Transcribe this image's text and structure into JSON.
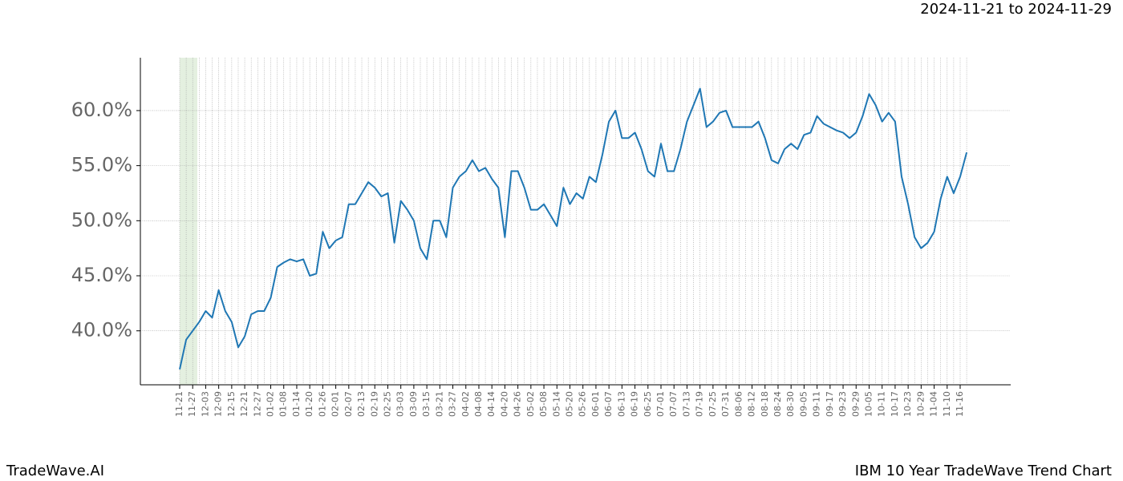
{
  "header": {
    "range": "2024-11-21 to 2024-11-29"
  },
  "footer": {
    "brand": "TradeWave.AI",
    "title": "IBM 10 Year TradeWave Trend Chart"
  },
  "chart_data": {
    "type": "line",
    "categories": [
      "11-21",
      null,
      "11-27",
      null,
      "12-03",
      null,
      "12-09",
      null,
      "12-15",
      null,
      "12-21",
      null,
      "12-27",
      null,
      "01-02",
      null,
      "01-08",
      null,
      "01-14",
      null,
      "01-20",
      null,
      "01-26",
      null,
      "02-01",
      null,
      "02-07",
      null,
      "02-13",
      null,
      "02-19",
      null,
      "02-25",
      null,
      "03-03",
      null,
      "03-09",
      null,
      "03-15",
      null,
      "03-21",
      null,
      "03-27",
      null,
      "04-02",
      null,
      "04-08",
      null,
      "04-14",
      null,
      "04-20",
      null,
      "04-26",
      null,
      "05-02",
      null,
      "05-08",
      null,
      "05-14",
      null,
      "05-20",
      null,
      "05-26",
      null,
      "06-01",
      null,
      "06-07",
      null,
      "06-13",
      null,
      "06-19",
      null,
      "06-25",
      null,
      "07-01",
      null,
      "07-07",
      null,
      "07-13",
      null,
      "07-19",
      null,
      "07-25",
      null,
      "07-31",
      null,
      "08-06",
      null,
      "08-12",
      null,
      "08-18",
      null,
      "08-24",
      null,
      "08-30",
      null,
      "09-05",
      null,
      "09-11",
      null,
      "09-17",
      null,
      "09-23",
      null,
      "09-29",
      null,
      "10-05",
      null,
      "10-11",
      null,
      "10-17",
      null,
      "10-23",
      null,
      "10-29",
      null,
      "11-04",
      null,
      "11-10",
      null,
      "11-16",
      null
    ],
    "series": [
      {
        "color": "#1f77b4",
        "values": [
          36.5,
          39.2,
          40.0,
          40.8,
          41.8,
          41.2,
          43.7,
          41.8,
          40.8,
          38.5,
          39.5,
          41.5,
          41.8,
          41.8,
          43.0,
          45.8,
          46.2,
          46.5,
          46.3,
          46.5,
          45.0,
          45.2,
          49.0,
          47.5,
          48.2,
          48.5,
          51.5,
          51.5,
          52.5,
          53.5,
          53.0,
          52.2,
          52.5,
          48.0,
          51.8,
          51.0,
          50.0,
          47.5,
          46.5,
          50.0,
          50.0,
          48.5,
          53.0,
          54.0,
          54.5,
          55.5,
          54.5,
          54.8,
          53.8,
          53.0,
          48.5,
          54.5,
          54.5,
          53.0,
          51.0,
          51.0,
          51.5,
          50.5,
          49.5,
          53.0,
          51.5,
          52.5,
          52.0,
          54.0,
          53.5,
          56.0,
          59.0,
          60.0,
          57.5,
          57.5,
          58.0,
          56.5,
          54.5,
          54.0,
          57.0,
          54.5,
          54.5,
          56.5,
          59.0,
          60.5,
          62.0,
          58.5,
          59.0,
          59.8,
          60.0,
          58.5,
          58.5,
          58.5,
          58.5,
          59.0,
          57.5,
          55.5,
          55.2,
          56.5,
          57.0,
          56.5,
          57.8,
          58.0,
          59.5,
          58.8,
          58.5,
          58.2,
          58.0,
          57.5,
          58.0,
          59.5,
          61.5,
          60.5,
          59.0,
          59.8,
          59.0,
          54.0,
          51.5,
          48.5,
          47.5,
          48.0,
          49.0,
          52.0,
          54.0,
          52.5,
          54.0,
          56.2
        ]
      }
    ],
    "ylim": [
      35.1,
      64.8
    ],
    "yticks": [
      {
        "value": 40,
        "label": "40.0%"
      },
      {
        "value": 45,
        "label": "45.0%"
      },
      {
        "value": 50,
        "label": "50.0%"
      },
      {
        "value": 55,
        "label": "55.0%"
      },
      {
        "value": 60,
        "label": "60.0%"
      }
    ],
    "grid": true
  }
}
